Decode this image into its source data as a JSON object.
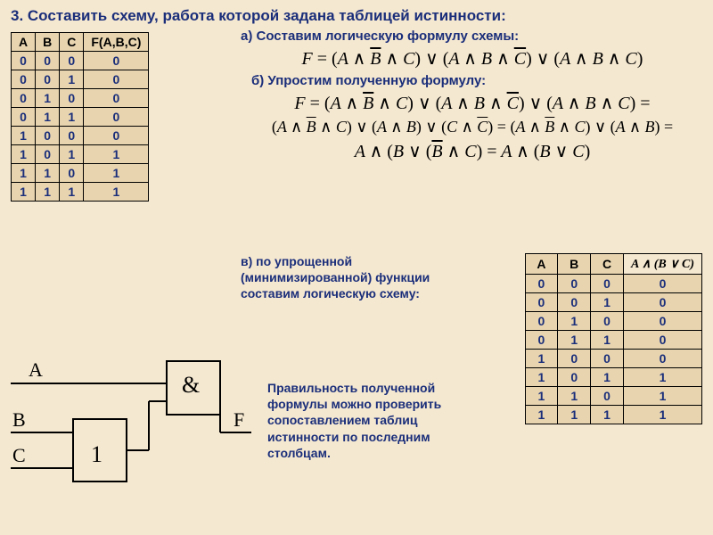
{
  "title": "3. Составить схему, работа которой задана таблицей истинности:",
  "section_a": "а) Составим логическую формулу схемы:",
  "section_b": "б) Упростим полученную формулу:",
  "section_c_lines": "в) по упрощенной (минимизированной) функции составим логическую схему:",
  "check_text": "Правильность полученной формулы можно проверить сопоставлением таблиц истинности по последним столбцам.",
  "table1": {
    "headers": [
      "A",
      "B",
      "C",
      "F(A,B,C)"
    ],
    "rows": [
      [
        "0",
        "0",
        "0",
        "0"
      ],
      [
        "0",
        "0",
        "1",
        "0"
      ],
      [
        "0",
        "1",
        "0",
        "0"
      ],
      [
        "0",
        "1",
        "1",
        "0"
      ],
      [
        "1",
        "0",
        "0",
        "0"
      ],
      [
        "1",
        "0",
        "1",
        "1"
      ],
      [
        "1",
        "1",
        "0",
        "1"
      ],
      [
        "1",
        "1",
        "1",
        "1"
      ]
    ]
  },
  "table2": {
    "headers": [
      "A",
      "B",
      "C"
    ],
    "header_formula": "A ∧ (B ∨ C)",
    "rows": [
      [
        "0",
        "0",
        "0",
        "0"
      ],
      [
        "0",
        "0",
        "1",
        "0"
      ],
      [
        "0",
        "1",
        "0",
        "0"
      ],
      [
        "0",
        "1",
        "1",
        "0"
      ],
      [
        "1",
        "0",
        "0",
        "0"
      ],
      [
        "1",
        "0",
        "1",
        "1"
      ],
      [
        "1",
        "1",
        "0",
        "1"
      ],
      [
        "1",
        "1",
        "1",
        "1"
      ]
    ]
  },
  "diagram": {
    "labels": {
      "A": "A",
      "B": "B",
      "C": "C",
      "F": "F"
    },
    "gate_or": "1",
    "gate_and": "&"
  },
  "colors": {
    "background": "#f5e8d0",
    "cell_bg": "#e8d5b0",
    "heading": "#1a2e7a",
    "border": "#000000"
  },
  "fonts": {
    "heading_size": 17,
    "subtitle_size": 15,
    "formula_size": 20,
    "table_size": 14,
    "formula_family": "Times New Roman"
  }
}
